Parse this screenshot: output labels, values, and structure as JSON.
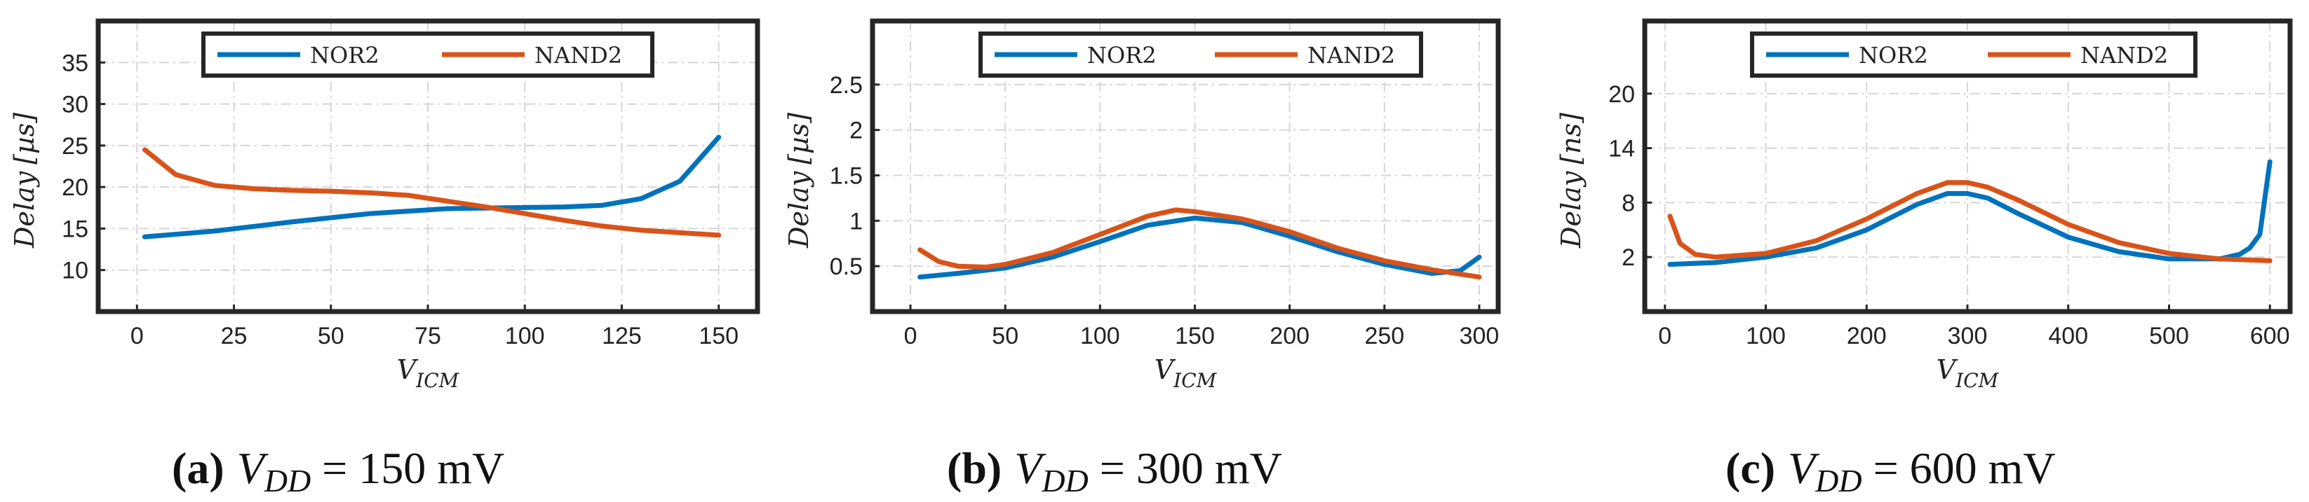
{
  "colors": {
    "nor2": "#0072BD",
    "nand2": "#D95319"
  },
  "panels": [
    {
      "caption": {
        "letter": "a",
        "equation": "V_DD = 150 mV"
      },
      "caption_label": "(a)",
      "caption_var": "V",
      "caption_sub": "DD",
      "caption_rest": " = 150 mV",
      "ylabel": "Delay",
      "yunit": "[µs]",
      "xlabel_main": "V",
      "xlabel_sub": "ICM",
      "legend": [
        "NOR2",
        "NAND2"
      ],
      "chart_data": {
        "type": "line",
        "title": "",
        "xlabel": "V_ICM",
        "ylabel": "Delay [µs]",
        "xlim": [
          -10,
          160
        ],
        "ylim": [
          5,
          40
        ],
        "xticks": [
          0,
          25,
          50,
          75,
          100,
          125,
          150
        ],
        "xtick_labels": [
          "0",
          "25",
          "50",
          "75",
          "100",
          "125",
          "150"
        ],
        "yticks": [
          10,
          15,
          20,
          25,
          30,
          35
        ],
        "ytick_labels": [
          "10",
          "15",
          "20",
          "25",
          "30",
          "35"
        ],
        "grid": true,
        "legend_position": "top-center",
        "series": [
          {
            "name": "NOR2",
            "x": [
              2,
              20,
              40,
              60,
              80,
              95,
              110,
              120,
              130,
              140,
              150
            ],
            "y": [
              14,
              14.7,
              15.8,
              16.8,
              17.4,
              17.5,
              17.6,
              17.8,
              18.6,
              20.7,
              26
            ]
          },
          {
            "name": "NAND2",
            "x": [
              2,
              10,
              20,
              30,
              40,
              50,
              60,
              70,
              80,
              90,
              100,
              110,
              120,
              130,
              140,
              150
            ],
            "y": [
              24.5,
              21.5,
              20.2,
              19.8,
              19.6,
              19.5,
              19.3,
              19,
              18.3,
              17.6,
              16.8,
              16,
              15.3,
              14.8,
              14.5,
              14.2
            ]
          }
        ]
      }
    },
    {
      "caption": {
        "letter": "b",
        "equation": "V_DD = 300 mV"
      },
      "caption_label": "(b)",
      "caption_var": "V",
      "caption_sub": "DD",
      "caption_rest": " = 300 mV",
      "ylabel": "Delay",
      "yunit": "[µs]",
      "xlabel_main": "V",
      "xlabel_sub": "ICM",
      "legend": [
        "NOR2",
        "NAND2"
      ],
      "chart_data": {
        "type": "line",
        "title": "",
        "xlabel": "V_ICM",
        "ylabel": "Delay [µs]",
        "xlim": [
          -20,
          310
        ],
        "ylim": [
          0,
          3.2
        ],
        "xticks": [
          0,
          50,
          100,
          150,
          200,
          250,
          300
        ],
        "xtick_labels": [
          "0",
          "50",
          "100",
          "150",
          "200",
          "250",
          "300"
        ],
        "yticks": [
          0.5,
          1,
          1.5,
          2,
          2.5
        ],
        "ytick_labels": [
          "0.5",
          "1",
          "1.5",
          "2",
          "2.5"
        ],
        "grid": true,
        "legend_position": "top-center",
        "series": [
          {
            "name": "NOR2",
            "x": [
              5,
              25,
              50,
              75,
              100,
              125,
              150,
              175,
              200,
              225,
              250,
              275,
              290,
              300
            ],
            "y": [
              0.38,
              0.42,
              0.48,
              0.6,
              0.77,
              0.95,
              1.03,
              0.98,
              0.83,
              0.66,
              0.52,
              0.42,
              0.45,
              0.6
            ]
          },
          {
            "name": "NAND2",
            "x": [
              5,
              15,
              25,
              40,
              50,
              75,
              100,
              125,
              140,
              150,
              175,
              200,
              225,
              250,
              275,
              300
            ],
            "y": [
              0.68,
              0.55,
              0.5,
              0.49,
              0.52,
              0.65,
              0.85,
              1.05,
              1.12,
              1.1,
              1.02,
              0.88,
              0.7,
              0.56,
              0.46,
              0.38
            ]
          }
        ]
      }
    },
    {
      "caption": {
        "letter": "c",
        "equation": "V_DD = 600 mV"
      },
      "caption_label": "(c)",
      "caption_var": "V",
      "caption_sub": "DD",
      "caption_rest": " = 600 mV",
      "ylabel": "Delay",
      "yunit": "[ns]",
      "xlabel_main": "V",
      "xlabel_sub": "ICM",
      "legend": [
        "NOR2",
        "NAND2"
      ],
      "chart_data": {
        "type": "line",
        "title": "",
        "xlabel": "V_ICM",
        "ylabel": "Delay [ns]",
        "xlim": [
          -20,
          620
        ],
        "ylim": [
          -4,
          28
        ],
        "xticks": [
          0,
          100,
          200,
          300,
          400,
          500,
          600
        ],
        "xtick_labels": [
          "0",
          "100",
          "200",
          "300",
          "400",
          "500",
          "600"
        ],
        "yticks": [
          2,
          8,
          14,
          20
        ],
        "ytick_labels": [
          "2",
          "8",
          "14",
          "20"
        ],
        "grid": true,
        "legend_position": "top-center",
        "series": [
          {
            "name": "NOR2",
            "x": [
              5,
              50,
              100,
              150,
              200,
              250,
              280,
              300,
              320,
              350,
              400,
              450,
              500,
              550,
              570,
              580,
              590,
              600
            ],
            "y": [
              1.2,
              1.4,
              2.0,
              3.0,
              5.0,
              7.8,
              9.0,
              9.0,
              8.5,
              6.8,
              4.2,
              2.6,
              1.8,
              1.8,
              2.3,
              3.0,
              4.5,
              12.5
            ]
          },
          {
            "name": "NAND2",
            "x": [
              5,
              15,
              30,
              50,
              100,
              150,
              200,
              250,
              280,
              300,
              320,
              350,
              400,
              450,
              500,
              550,
              600
            ],
            "y": [
              6.5,
              3.5,
              2.3,
              2.0,
              2.4,
              3.8,
              6.2,
              9.0,
              10.2,
              10.2,
              9.7,
              8.3,
              5.6,
              3.6,
              2.4,
              1.8,
              1.6
            ]
          }
        ]
      }
    }
  ]
}
